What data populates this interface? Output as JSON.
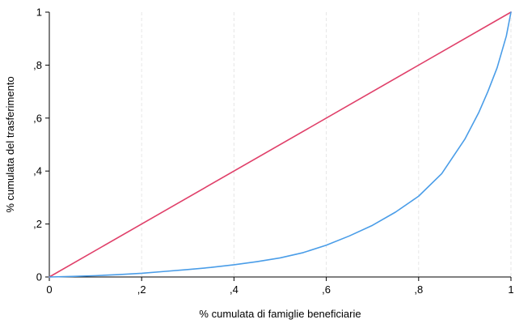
{
  "chart_data": {
    "type": "line",
    "title": "",
    "xlabel": "% cumulata di famiglie beneficiarie",
    "ylabel": "% cumulata del trasferimento",
    "xlim": [
      0,
      1
    ],
    "ylim": [
      0,
      1
    ],
    "grid": true,
    "grid_style": "dashed-vertical",
    "legend": "none",
    "x_ticks": [
      {
        "value": 0,
        "label": "0"
      },
      {
        "value": 0.2,
        "label": ",2"
      },
      {
        "value": 0.4,
        "label": ",4"
      },
      {
        "value": 0.6,
        "label": ",6"
      },
      {
        "value": 0.8,
        "label": ",8"
      },
      {
        "value": 1,
        "label": "1"
      }
    ],
    "y_ticks": [
      {
        "value": 0,
        "label": "0"
      },
      {
        "value": 0.2,
        "label": ",2"
      },
      {
        "value": 0.4,
        "label": ",4"
      },
      {
        "value": 0.6,
        "label": ",6"
      },
      {
        "value": 0.8,
        "label": ",8"
      },
      {
        "value": 1,
        "label": "1"
      }
    ],
    "series": [
      {
        "color": "#e0406a",
        "x": [
          0,
          1
        ],
        "y": [
          0,
          1
        ]
      },
      {
        "color": "#4a9de8",
        "x": [
          0,
          0.05,
          0.1,
          0.15,
          0.2,
          0.25,
          0.3,
          0.35,
          0.4,
          0.45,
          0.5,
          0.55,
          0.6,
          0.65,
          0.7,
          0.75,
          0.8,
          0.85,
          0.9,
          0.93,
          0.95,
          0.97,
          0.98,
          0.99,
          1
        ],
        "y": [
          0,
          0.002,
          0.005,
          0.009,
          0.014,
          0.021,
          0.028,
          0.036,
          0.046,
          0.058,
          0.072,
          0.092,
          0.12,
          0.155,
          0.195,
          0.245,
          0.305,
          0.39,
          0.52,
          0.62,
          0.7,
          0.79,
          0.85,
          0.91,
          1
        ]
      }
    ]
  }
}
